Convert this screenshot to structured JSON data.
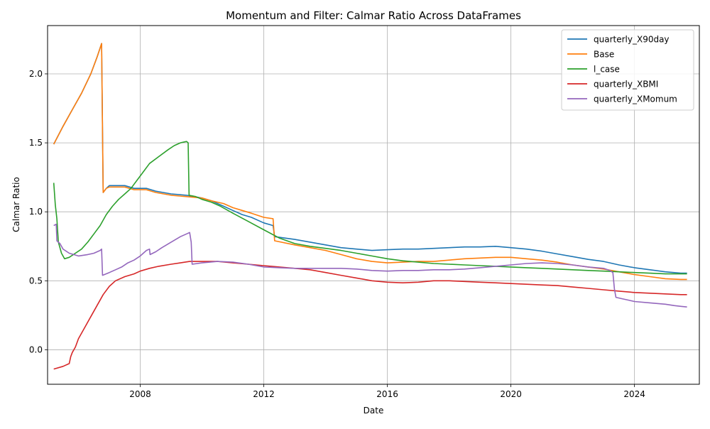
{
  "chart_data": {
    "type": "line",
    "title": "Momentum and Filter: Calmar Ratio Across DataFrames",
    "xlabel": "Date",
    "ylabel": "Calmar Ratio",
    "xlim": [
      2005.0,
      2026.1
    ],
    "ylim": [
      -0.25,
      2.35
    ],
    "x_ticks": [
      2008,
      2012,
      2016,
      2020,
      2024
    ],
    "x_tick_labels": [
      "2008",
      "2012",
      "2016",
      "2020",
      "2024"
    ],
    "y_ticks": [
      0.0,
      0.5,
      1.0,
      1.5,
      2.0
    ],
    "y_tick_labels": [
      "0.0",
      "0.5",
      "1.0",
      "1.5",
      "2.0"
    ],
    "grid": true,
    "legend_position": "top-right",
    "series": [
      {
        "name": "quarterly_X90day",
        "color": "#1f77b4",
        "points": [
          [
            2005.2,
            1.49
          ],
          [
            2005.5,
            1.62
          ],
          [
            2005.8,
            1.74
          ],
          [
            2006.1,
            1.86
          ],
          [
            2006.4,
            2.0
          ],
          [
            2006.6,
            2.12
          ],
          [
            2006.75,
            2.22
          ],
          [
            2006.8,
            1.14
          ],
          [
            2006.9,
            1.17
          ],
          [
            2007.0,
            1.19
          ],
          [
            2007.5,
            1.19
          ],
          [
            2007.8,
            1.17
          ],
          [
            2008.2,
            1.17
          ],
          [
            2008.5,
            1.15
          ],
          [
            2009.0,
            1.13
          ],
          [
            2009.5,
            1.12
          ],
          [
            2010.0,
            1.1
          ],
          [
            2010.3,
            1.08
          ],
          [
            2010.7,
            1.04
          ],
          [
            2011.0,
            1.01
          ],
          [
            2011.3,
            0.98
          ],
          [
            2011.6,
            0.96
          ],
          [
            2012.0,
            0.92
          ],
          [
            2012.3,
            0.9
          ],
          [
            2012.35,
            0.82
          ],
          [
            2013.0,
            0.8
          ],
          [
            2013.5,
            0.78
          ],
          [
            2014.0,
            0.76
          ],
          [
            2014.5,
            0.74
          ],
          [
            2015.0,
            0.73
          ],
          [
            2015.5,
            0.72
          ],
          [
            2016.0,
            0.725
          ],
          [
            2016.5,
            0.73
          ],
          [
            2017.0,
            0.73
          ],
          [
            2017.5,
            0.735
          ],
          [
            2018.0,
            0.74
          ],
          [
            2018.5,
            0.745
          ],
          [
            2019.0,
            0.745
          ],
          [
            2019.5,
            0.75
          ],
          [
            2020.0,
            0.74
          ],
          [
            2020.5,
            0.73
          ],
          [
            2021.0,
            0.715
          ],
          [
            2021.5,
            0.695
          ],
          [
            2022.0,
            0.675
          ],
          [
            2022.5,
            0.655
          ],
          [
            2023.0,
            0.64
          ],
          [
            2023.5,
            0.615
          ],
          [
            2024.0,
            0.595
          ],
          [
            2024.5,
            0.58
          ],
          [
            2025.0,
            0.565
          ],
          [
            2025.5,
            0.555
          ],
          [
            2025.7,
            0.555
          ]
        ]
      },
      {
        "name": "Base",
        "color": "#ff7f0e",
        "points": [
          [
            2005.2,
            1.49
          ],
          [
            2005.5,
            1.62
          ],
          [
            2005.8,
            1.74
          ],
          [
            2006.1,
            1.86
          ],
          [
            2006.4,
            2.0
          ],
          [
            2006.6,
            2.12
          ],
          [
            2006.75,
            2.22
          ],
          [
            2006.8,
            1.14
          ],
          [
            2006.9,
            1.17
          ],
          [
            2007.0,
            1.18
          ],
          [
            2007.5,
            1.18
          ],
          [
            2007.8,
            1.16
          ],
          [
            2008.2,
            1.16
          ],
          [
            2008.5,
            1.14
          ],
          [
            2009.0,
            1.12
          ],
          [
            2009.5,
            1.11
          ],
          [
            2010.0,
            1.1
          ],
          [
            2010.3,
            1.08
          ],
          [
            2010.7,
            1.06
          ],
          [
            2011.0,
            1.03
          ],
          [
            2011.3,
            1.01
          ],
          [
            2011.6,
            0.99
          ],
          [
            2012.0,
            0.96
          ],
          [
            2012.3,
            0.95
          ],
          [
            2012.35,
            0.79
          ],
          [
            2013.0,
            0.76
          ],
          [
            2013.5,
            0.74
          ],
          [
            2014.0,
            0.72
          ],
          [
            2014.5,
            0.69
          ],
          [
            2015.0,
            0.66
          ],
          [
            2015.5,
            0.64
          ],
          [
            2016.0,
            0.63
          ],
          [
            2016.5,
            0.635
          ],
          [
            2017.0,
            0.64
          ],
          [
            2017.5,
            0.64
          ],
          [
            2018.0,
            0.65
          ],
          [
            2018.5,
            0.66
          ],
          [
            2019.0,
            0.665
          ],
          [
            2019.5,
            0.67
          ],
          [
            2020.0,
            0.67
          ],
          [
            2020.5,
            0.66
          ],
          [
            2021.0,
            0.65
          ],
          [
            2021.5,
            0.635
          ],
          [
            2022.0,
            0.615
          ],
          [
            2022.5,
            0.6
          ],
          [
            2023.0,
            0.585
          ],
          [
            2023.5,
            0.565
          ],
          [
            2024.0,
            0.545
          ],
          [
            2024.5,
            0.53
          ],
          [
            2025.0,
            0.515
          ],
          [
            2025.5,
            0.51
          ],
          [
            2025.7,
            0.51
          ]
        ]
      },
      {
        "name": "l_case",
        "color": "#2ca02c",
        "points": [
          [
            2005.2,
            1.21
          ],
          [
            2005.25,
            1.05
          ],
          [
            2005.3,
            0.95
          ],
          [
            2005.35,
            0.78
          ],
          [
            2005.45,
            0.7
          ],
          [
            2005.55,
            0.66
          ],
          [
            2005.7,
            0.67
          ],
          [
            2005.9,
            0.7
          ],
          [
            2006.1,
            0.73
          ],
          [
            2006.3,
            0.78
          ],
          [
            2006.5,
            0.84
          ],
          [
            2006.7,
            0.9
          ],
          [
            2006.9,
            0.98
          ],
          [
            2007.1,
            1.04
          ],
          [
            2007.3,
            1.09
          ],
          [
            2007.5,
            1.13
          ],
          [
            2007.7,
            1.17
          ],
          [
            2007.9,
            1.23
          ],
          [
            2008.1,
            1.29
          ],
          [
            2008.3,
            1.35
          ],
          [
            2008.6,
            1.4
          ],
          [
            2008.9,
            1.45
          ],
          [
            2009.1,
            1.48
          ],
          [
            2009.3,
            1.5
          ],
          [
            2009.5,
            1.51
          ],
          [
            2009.55,
            1.5
          ],
          [
            2009.58,
            1.12
          ],
          [
            2009.8,
            1.11
          ],
          [
            2010.0,
            1.09
          ],
          [
            2010.3,
            1.07
          ],
          [
            2010.6,
            1.04
          ],
          [
            2011.0,
            0.99
          ],
          [
            2011.5,
            0.93
          ],
          [
            2012.0,
            0.87
          ],
          [
            2012.5,
            0.81
          ],
          [
            2013.0,
            0.77
          ],
          [
            2013.5,
            0.75
          ],
          [
            2014.0,
            0.735
          ],
          [
            2014.5,
            0.72
          ],
          [
            2015.0,
            0.7
          ],
          [
            2015.5,
            0.68
          ],
          [
            2016.0,
            0.66
          ],
          [
            2016.5,
            0.645
          ],
          [
            2017.0,
            0.635
          ],
          [
            2017.5,
            0.625
          ],
          [
            2018.0,
            0.62
          ],
          [
            2018.5,
            0.615
          ],
          [
            2019.0,
            0.61
          ],
          [
            2019.5,
            0.605
          ],
          [
            2020.0,
            0.6
          ],
          [
            2020.5,
            0.595
          ],
          [
            2021.0,
            0.59
          ],
          [
            2021.5,
            0.585
          ],
          [
            2022.0,
            0.58
          ],
          [
            2022.5,
            0.575
          ],
          [
            2023.0,
            0.57
          ],
          [
            2023.5,
            0.565
          ],
          [
            2024.0,
            0.56
          ],
          [
            2024.5,
            0.555
          ],
          [
            2025.0,
            0.55
          ],
          [
            2025.5,
            0.55
          ],
          [
            2025.7,
            0.55
          ]
        ]
      },
      {
        "name": "quarterly_XBMI",
        "color": "#d62728",
        "points": [
          [
            2005.2,
            -0.14
          ],
          [
            2005.5,
            -0.12
          ],
          [
            2005.7,
            -0.1
          ],
          [
            2005.75,
            -0.05
          ],
          [
            2005.8,
            -0.02
          ],
          [
            2005.9,
            0.02
          ],
          [
            2006.0,
            0.08
          ],
          [
            2006.2,
            0.16
          ],
          [
            2006.4,
            0.24
          ],
          [
            2006.6,
            0.32
          ],
          [
            2006.8,
            0.4
          ],
          [
            2007.0,
            0.46
          ],
          [
            2007.2,
            0.5
          ],
          [
            2007.5,
            0.53
          ],
          [
            2007.8,
            0.55
          ],
          [
            2008.0,
            0.57
          ],
          [
            2008.3,
            0.59
          ],
          [
            2008.6,
            0.605
          ],
          [
            2009.0,
            0.62
          ],
          [
            2009.3,
            0.63
          ],
          [
            2009.6,
            0.64
          ],
          [
            2010.0,
            0.64
          ],
          [
            2010.5,
            0.64
          ],
          [
            2011.0,
            0.63
          ],
          [
            2011.5,
            0.62
          ],
          [
            2012.0,
            0.61
          ],
          [
            2012.5,
            0.6
          ],
          [
            2013.0,
            0.59
          ],
          [
            2013.5,
            0.58
          ],
          [
            2014.0,
            0.56
          ],
          [
            2014.5,
            0.54
          ],
          [
            2015.0,
            0.52
          ],
          [
            2015.5,
            0.5
          ],
          [
            2016.0,
            0.49
          ],
          [
            2016.5,
            0.485
          ],
          [
            2017.0,
            0.49
          ],
          [
            2017.5,
            0.5
          ],
          [
            2018.0,
            0.5
          ],
          [
            2018.5,
            0.495
          ],
          [
            2019.0,
            0.49
          ],
          [
            2019.5,
            0.485
          ],
          [
            2020.0,
            0.48
          ],
          [
            2020.5,
            0.475
          ],
          [
            2021.0,
            0.47
          ],
          [
            2021.5,
            0.465
          ],
          [
            2022.0,
            0.455
          ],
          [
            2022.5,
            0.445
          ],
          [
            2023.0,
            0.435
          ],
          [
            2023.5,
            0.425
          ],
          [
            2024.0,
            0.415
          ],
          [
            2024.5,
            0.41
          ],
          [
            2025.0,
            0.405
          ],
          [
            2025.5,
            0.4
          ],
          [
            2025.7,
            0.4
          ]
        ]
      },
      {
        "name": "quarterly_XMomum",
        "color": "#9467bd",
        "points": [
          [
            2005.2,
            0.9
          ],
          [
            2005.28,
            0.91
          ],
          [
            2005.3,
            0.79
          ],
          [
            2005.4,
            0.77
          ],
          [
            2005.5,
            0.73
          ],
          [
            2005.7,
            0.7
          ],
          [
            2006.0,
            0.68
          ],
          [
            2006.3,
            0.69
          ],
          [
            2006.5,
            0.7
          ],
          [
            2006.7,
            0.72
          ],
          [
            2006.75,
            0.73
          ],
          [
            2006.78,
            0.54
          ],
          [
            2007.0,
            0.56
          ],
          [
            2007.2,
            0.58
          ],
          [
            2007.4,
            0.6
          ],
          [
            2007.6,
            0.63
          ],
          [
            2007.8,
            0.65
          ],
          [
            2008.0,
            0.68
          ],
          [
            2008.2,
            0.72
          ],
          [
            2008.3,
            0.73
          ],
          [
            2008.32,
            0.69
          ],
          [
            2008.5,
            0.71
          ],
          [
            2008.7,
            0.74
          ],
          [
            2009.0,
            0.78
          ],
          [
            2009.3,
            0.82
          ],
          [
            2009.5,
            0.84
          ],
          [
            2009.6,
            0.85
          ],
          [
            2009.65,
            0.78
          ],
          [
            2009.68,
            0.62
          ],
          [
            2010.0,
            0.63
          ],
          [
            2010.5,
            0.64
          ],
          [
            2011.0,
            0.635
          ],
          [
            2011.5,
            0.62
          ],
          [
            2012.0,
            0.6
          ],
          [
            2012.5,
            0.595
          ],
          [
            2013.0,
            0.59
          ],
          [
            2013.5,
            0.59
          ],
          [
            2014.0,
            0.59
          ],
          [
            2014.5,
            0.59
          ],
          [
            2015.0,
            0.585
          ],
          [
            2015.5,
            0.575
          ],
          [
            2016.0,
            0.57
          ],
          [
            2016.5,
            0.575
          ],
          [
            2017.0,
            0.575
          ],
          [
            2017.5,
            0.58
          ],
          [
            2018.0,
            0.58
          ],
          [
            2018.5,
            0.585
          ],
          [
            2019.0,
            0.595
          ],
          [
            2019.5,
            0.605
          ],
          [
            2020.0,
            0.615
          ],
          [
            2020.5,
            0.625
          ],
          [
            2021.0,
            0.63
          ],
          [
            2021.5,
            0.625
          ],
          [
            2022.0,
            0.615
          ],
          [
            2022.5,
            0.6
          ],
          [
            2023.0,
            0.59
          ],
          [
            2023.2,
            0.575
          ],
          [
            2023.3,
            0.56
          ],
          [
            2023.35,
            0.44
          ],
          [
            2023.4,
            0.38
          ],
          [
            2023.6,
            0.37
          ],
          [
            2023.8,
            0.36
          ],
          [
            2024.0,
            0.35
          ],
          [
            2024.5,
            0.34
          ],
          [
            2025.0,
            0.33
          ],
          [
            2025.3,
            0.32
          ],
          [
            2025.5,
            0.315
          ],
          [
            2025.7,
            0.31
          ]
        ]
      }
    ]
  }
}
